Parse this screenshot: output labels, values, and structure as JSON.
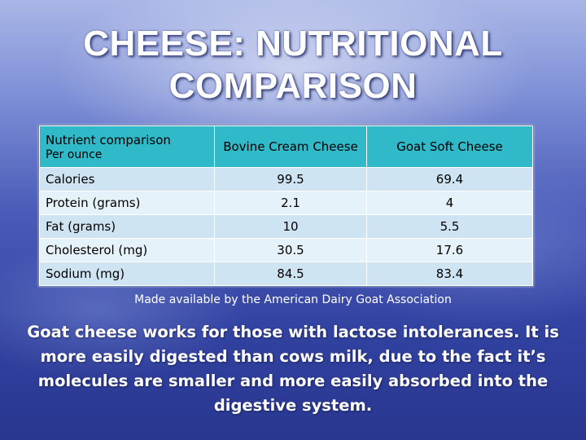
{
  "title": {
    "line1": "CHEESE: NUTRITIONAL",
    "line2": "COMPARISON"
  },
  "table": {
    "header": {
      "nutrient": "Nutrient comparison",
      "per": "Per ounce",
      "bovine": "Bovine Cream Cheese",
      "goat": "Goat  Soft Cheese"
    },
    "rows": [
      {
        "nutrient": "Calories",
        "bovine": "99.5",
        "goat": "69.4"
      },
      {
        "nutrient": "Protein (grams)",
        "bovine": "2.1",
        "goat": "4"
      },
      {
        "nutrient": "Fat (grams)",
        "bovine": "10",
        "goat": "5.5"
      },
      {
        "nutrient": "Cholesterol (mg)",
        "bovine": "30.5",
        "goat": "17.6"
      },
      {
        "nutrient": "Sodium (mg)",
        "bovine": "84.5",
        "goat": "83.4"
      }
    ]
  },
  "credit": "Made available by the American Dairy Goat Association",
  "body": "Goat cheese works for those with lactose intolerances. It is more easily digested than cows milk,  due to the fact it’s molecules are smaller and more easily absorbed into the digestive system.",
  "colors": {
    "header_bg": "#2fb9c9",
    "row_bg": "#cfe4f2",
    "row_alt_bg": "#e6f2f9"
  }
}
